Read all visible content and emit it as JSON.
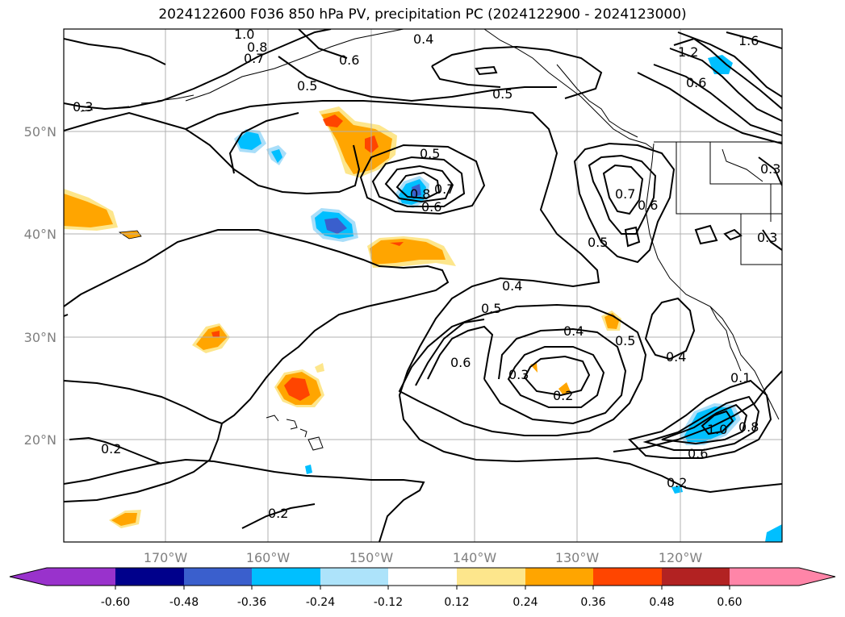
{
  "title": "2024122600 F036 850 hPa PV, precipitation PC (2024122900 - 2024123000)",
  "map": {
    "lat_labels": [
      "50°N",
      "40°N",
      "30°N",
      "20°N"
    ],
    "lon_labels": [
      "170°W",
      "160°W",
      "150°W",
      "140°W",
      "130°W",
      "120°W"
    ],
    "contour_labels": [
      "1.0",
      "0.8",
      "0.7",
      "0.6",
      "0.4",
      "0.5",
      "0.5",
      "1.2",
      "1.6",
      "0.3",
      "0.5",
      "0.6",
      "0.8",
      "0.7",
      "0.6",
      "0.7",
      "0.6",
      "0.5",
      "0.3",
      "0.3",
      "0.4",
      "0.5",
      "0.6",
      "0.3",
      "0.4",
      "0.2",
      "0.5",
      "0.4",
      "0.1",
      "1.0",
      "0.8",
      "0.6",
      "0.2",
      "0.2",
      "0.2"
    ],
    "colors": {
      "coast": "#000000",
      "grid": "#b0b0b0",
      "pos_levels": [
        "#fde68c",
        "#ffa500",
        "#ff4500",
        "#b22222",
        "#ff85a8"
      ],
      "neg_levels": [
        "#a9def9",
        "#00bfff",
        "#3a5fcd",
        "#00008b",
        "#8a3fcf"
      ]
    }
  },
  "colorbar": {
    "ticks": [
      "-0.60",
      "-0.48",
      "-0.36",
      "-0.24",
      "-0.12",
      "0.12",
      "0.24",
      "0.36",
      "0.48",
      "0.60"
    ],
    "colors": [
      "#9932cc",
      "#00008b",
      "#3a5fcd",
      "#00bfff",
      "#ade3fa",
      "#ffffff",
      "#fde68c",
      "#ffa500",
      "#ff4500",
      "#b22222",
      "#ff85a8"
    ]
  }
}
